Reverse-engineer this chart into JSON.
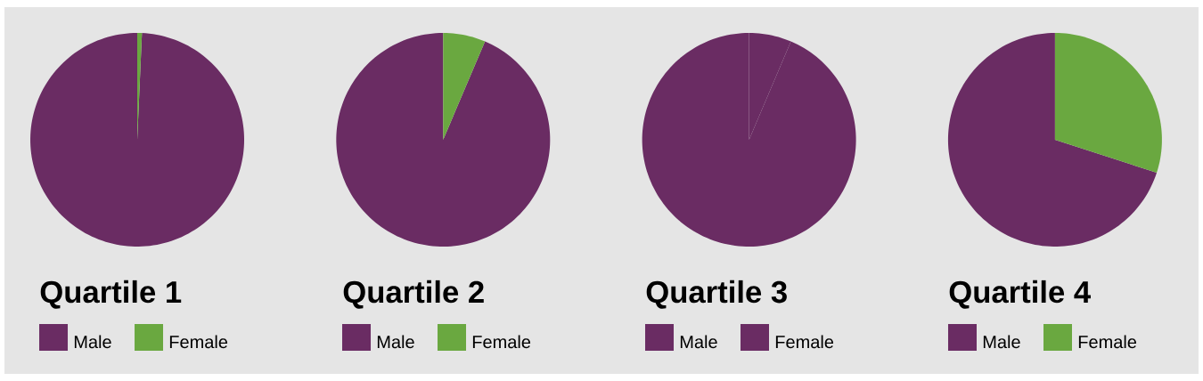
{
  "chart_data": [
    {
      "type": "pie",
      "title": "Quartile 1",
      "categories": [
        "Male",
        "Female"
      ],
      "values": [
        99.3,
        0.7
      ],
      "colors": [
        "#6a2c63",
        "#6aa840"
      ],
      "legend": "bottom"
    },
    {
      "type": "pie",
      "title": "Quartile 2",
      "categories": [
        "Male",
        "Female"
      ],
      "values": [
        93.6,
        6.4
      ],
      "colors": [
        "#6a2c63",
        "#6aa840"
      ],
      "legend": "bottom"
    },
    {
      "type": "pie",
      "title": "Quartile 3",
      "categories": [
        "Male",
        "Female"
      ],
      "values": [
        93.6,
        6.4
      ],
      "colors": [
        "#6a2c63",
        "#6a2c63"
      ],
      "legend": "bottom"
    },
    {
      "type": "pie",
      "title": "Quartile 4",
      "categories": [
        "Male",
        "Female"
      ],
      "values": [
        70,
        30
      ],
      "colors": [
        "#6a2c63",
        "#6aa840"
      ],
      "legend": "bottom"
    }
  ]
}
